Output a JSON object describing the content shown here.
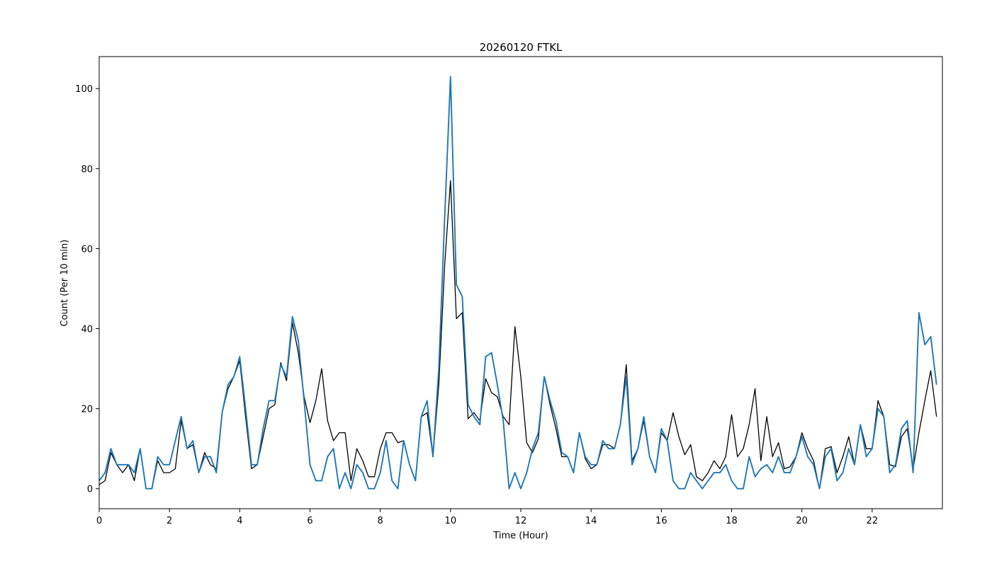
{
  "chart_data": {
    "type": "line",
    "title": "20260120 FTKL",
    "xlabel": "Time (Hour)",
    "ylabel": "Count (Per 10 min)",
    "xlim": [
      0,
      24.0
    ],
    "ylim": [
      -5,
      108
    ],
    "xticks": [
      0,
      2,
      4,
      6,
      8,
      10,
      12,
      14,
      16,
      18,
      20,
      22
    ],
    "yticks": [
      0,
      20,
      40,
      60,
      80,
      100
    ],
    "grid": false,
    "series": [
      {
        "color": "#000000",
        "values": [
          1,
          2,
          9,
          6,
          4,
          6,
          2,
          10,
          0,
          0,
          7,
          4,
          4,
          5,
          17,
          10,
          11,
          4,
          9,
          6,
          5,
          19,
          25,
          28,
          32,
          18,
          5,
          6,
          13,
          20,
          21,
          31.5,
          27,
          41.5,
          34,
          23,
          16.5,
          22,
          30,
          17,
          12,
          14,
          14,
          2,
          10,
          7,
          3,
          3,
          10,
          14,
          14,
          11.5,
          12,
          6,
          2,
          18,
          19,
          8,
          26,
          56,
          77,
          42.5,
          44,
          17.5,
          19,
          17,
          27.5,
          24,
          23,
          18,
          16,
          40.5,
          28,
          11.5,
          9,
          12.5,
          28,
          21,
          15,
          8,
          8,
          4,
          14,
          7.5,
          5,
          6,
          11,
          11,
          10,
          16,
          31,
          7,
          10,
          17,
          8,
          4,
          14,
          12,
          19,
          13,
          8.5,
          11,
          3,
          2,
          4,
          7,
          5,
          8,
          18.5,
          8,
          10,
          16,
          25,
          7,
          18,
          8,
          11.5,
          5,
          5.5,
          8,
          14,
          10,
          7,
          0,
          10,
          10.5,
          4,
          8,
          13,
          6,
          16,
          10,
          10,
          22,
          18,
          6,
          5.5,
          13,
          15,
          5,
          14,
          22,
          29.5,
          18
        ]
      },
      {
        "color": "#1f77b4",
        "values": [
          2,
          4,
          10,
          6,
          6,
          6,
          4,
          10,
          0,
          0,
          8,
          6,
          6,
          12,
          18,
          10,
          12,
          4,
          8,
          8,
          4,
          19,
          26,
          28,
          33,
          20,
          6,
          6,
          15,
          22,
          22,
          31,
          28,
          43,
          37,
          22,
          6,
          2,
          2,
          8,
          10,
          0,
          4,
          0,
          6,
          4,
          0,
          0,
          4,
          12,
          2,
          0,
          12,
          6,
          2,
          18,
          22,
          8,
          30,
          68,
          103,
          51,
          48,
          21,
          18,
          16,
          33,
          34,
          26,
          17,
          0,
          4,
          0,
          4,
          10,
          14,
          28,
          22,
          17,
          9,
          8,
          4,
          14,
          8,
          6,
          6,
          12,
          10,
          10,
          16,
          28,
          6,
          10,
          18,
          8,
          4,
          15,
          12,
          2,
          0,
          0,
          4,
          2,
          0,
          2,
          4,
          4,
          6,
          2,
          0,
          0,
          8,
          3,
          5,
          6,
          4,
          8,
          4,
          4,
          8,
          13,
          8,
          6,
          0,
          8,
          10,
          2,
          4,
          10,
          6,
          16,
          8,
          10,
          20,
          18,
          4,
          6,
          15,
          17,
          4,
          44,
          36,
          38,
          26
        ]
      }
    ]
  }
}
